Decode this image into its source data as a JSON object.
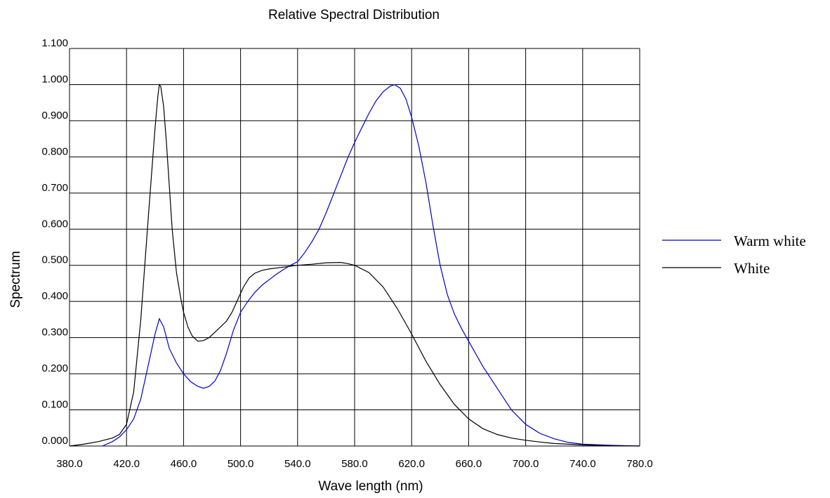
{
  "chart_data": {
    "type": "line",
    "title": "Relative Spectral Distribution",
    "xlabel": "Wave length (nm)",
    "ylabel": "Spectrum",
    "xlim": [
      380,
      780
    ],
    "ylim": [
      0,
      1.1
    ],
    "x_ticks": [
      "380.0",
      "420.0",
      "460.0",
      "500.0",
      "540.0",
      "580.0",
      "620.0",
      "660.0",
      "700.0",
      "740.0",
      "780.0"
    ],
    "y_ticks": [
      "0.000",
      "0.100",
      "0.200",
      "0.300",
      "0.400",
      "0.500",
      "0.600",
      "0.700",
      "0.800",
      "0.900",
      "1.000",
      "1.100"
    ],
    "grid": true,
    "legend": "right",
    "series": [
      {
        "name": "Warm white",
        "color": "#0000cc",
        "points": [
          [
            403,
            0
          ],
          [
            410,
            0.012
          ],
          [
            415,
            0.025
          ],
          [
            420,
            0.045
          ],
          [
            425,
            0.075
          ],
          [
            430,
            0.13
          ],
          [
            435,
            0.22
          ],
          [
            440,
            0.31
          ],
          [
            443,
            0.352
          ],
          [
            446,
            0.33
          ],
          [
            450,
            0.27
          ],
          [
            455,
            0.23
          ],
          [
            460,
            0.2
          ],
          [
            465,
            0.178
          ],
          [
            470,
            0.165
          ],
          [
            474,
            0.16
          ],
          [
            478,
            0.165
          ],
          [
            482,
            0.18
          ],
          [
            486,
            0.21
          ],
          [
            490,
            0.255
          ],
          [
            495,
            0.32
          ],
          [
            500,
            0.37
          ],
          [
            505,
            0.4
          ],
          [
            510,
            0.425
          ],
          [
            515,
            0.445
          ],
          [
            520,
            0.46
          ],
          [
            525,
            0.475
          ],
          [
            530,
            0.488
          ],
          [
            535,
            0.5
          ],
          [
            540,
            0.51
          ],
          [
            545,
            0.535
          ],
          [
            550,
            0.565
          ],
          [
            555,
            0.6
          ],
          [
            560,
            0.645
          ],
          [
            565,
            0.695
          ],
          [
            570,
            0.745
          ],
          [
            575,
            0.795
          ],
          [
            580,
            0.84
          ],
          [
            585,
            0.88
          ],
          [
            590,
            0.92
          ],
          [
            595,
            0.955
          ],
          [
            600,
            0.98
          ],
          [
            605,
            0.996
          ],
          [
            608,
            1.0
          ],
          [
            612,
            0.99
          ],
          [
            616,
            0.96
          ],
          [
            620,
            0.91
          ],
          [
            625,
            0.83
          ],
          [
            630,
            0.73
          ],
          [
            635,
            0.61
          ],
          [
            640,
            0.5
          ],
          [
            645,
            0.42
          ],
          [
            650,
            0.365
          ],
          [
            655,
            0.325
          ],
          [
            660,
            0.29
          ],
          [
            665,
            0.255
          ],
          [
            670,
            0.22
          ],
          [
            675,
            0.19
          ],
          [
            680,
            0.16
          ],
          [
            685,
            0.13
          ],
          [
            690,
            0.1
          ],
          [
            695,
            0.08
          ],
          [
            700,
            0.06
          ],
          [
            710,
            0.035
          ],
          [
            720,
            0.02
          ],
          [
            730,
            0.01
          ],
          [
            740,
            0.005
          ],
          [
            760,
            0.002
          ],
          [
            780,
            0
          ]
        ]
      },
      {
        "name": "White",
        "color": "#000000",
        "points": [
          [
            380,
            0
          ],
          [
            390,
            0.005
          ],
          [
            400,
            0.012
          ],
          [
            410,
            0.022
          ],
          [
            415,
            0.032
          ],
          [
            420,
            0.06
          ],
          [
            425,
            0.15
          ],
          [
            430,
            0.35
          ],
          [
            435,
            0.62
          ],
          [
            440,
            0.88
          ],
          [
            442,
            0.97
          ],
          [
            443,
            1.0
          ],
          [
            444,
            0.995
          ],
          [
            446,
            0.94
          ],
          [
            448,
            0.84
          ],
          [
            450,
            0.72
          ],
          [
            452,
            0.6
          ],
          [
            455,
            0.48
          ],
          [
            458,
            0.41
          ],
          [
            460,
            0.37
          ],
          [
            463,
            0.33
          ],
          [
            466,
            0.305
          ],
          [
            470,
            0.29
          ],
          [
            474,
            0.292
          ],
          [
            478,
            0.3
          ],
          [
            482,
            0.315
          ],
          [
            486,
            0.33
          ],
          [
            490,
            0.345
          ],
          [
            494,
            0.37
          ],
          [
            498,
            0.405
          ],
          [
            502,
            0.44
          ],
          [
            506,
            0.465
          ],
          [
            510,
            0.478
          ],
          [
            515,
            0.486
          ],
          [
            520,
            0.49
          ],
          [
            530,
            0.495
          ],
          [
            540,
            0.5
          ],
          [
            550,
            0.503
          ],
          [
            560,
            0.507
          ],
          [
            570,
            0.508
          ],
          [
            575,
            0.505
          ],
          [
            580,
            0.5
          ],
          [
            590,
            0.48
          ],
          [
            600,
            0.44
          ],
          [
            610,
            0.38
          ],
          [
            620,
            0.31
          ],
          [
            630,
            0.235
          ],
          [
            640,
            0.17
          ],
          [
            650,
            0.115
          ],
          [
            660,
            0.075
          ],
          [
            670,
            0.048
          ],
          [
            680,
            0.032
          ],
          [
            690,
            0.022
          ],
          [
            700,
            0.016
          ],
          [
            710,
            0.011
          ],
          [
            720,
            0.007
          ],
          [
            730,
            0.005
          ],
          [
            740,
            0.003
          ],
          [
            760,
            0.001
          ],
          [
            780,
            0
          ]
        ]
      }
    ]
  }
}
